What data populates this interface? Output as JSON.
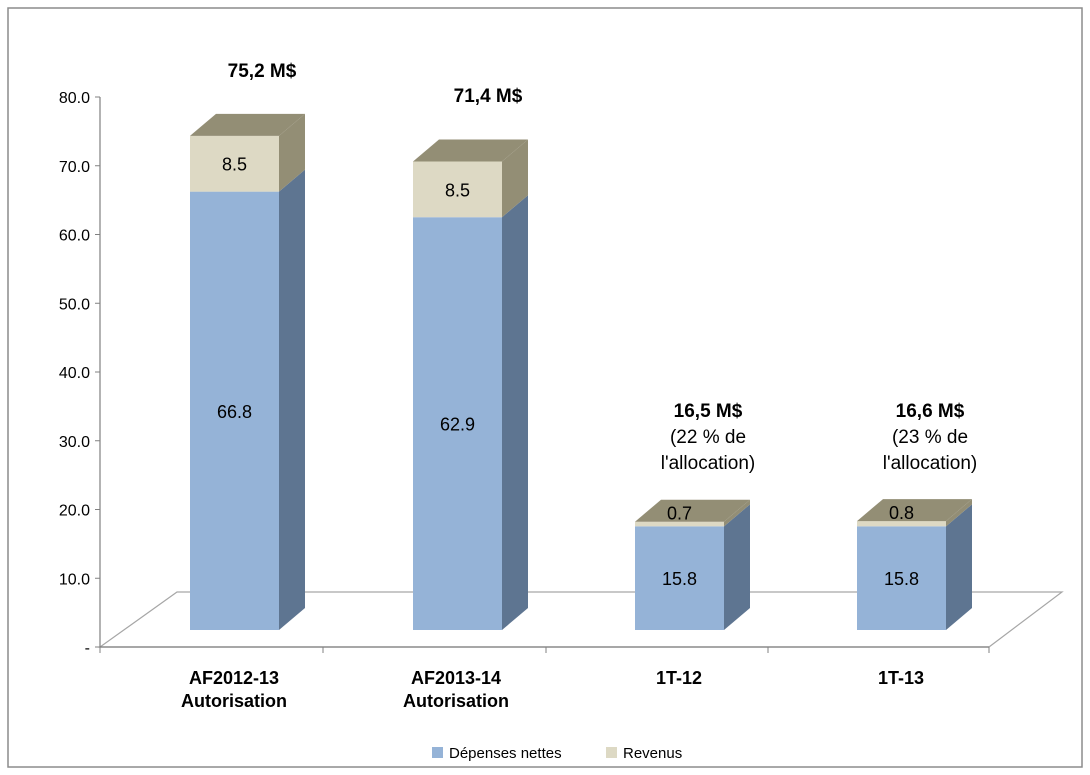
{
  "chart_data": {
    "type": "bar",
    "stacked": true,
    "three_d": true,
    "categories": [
      [
        "AF2012-13",
        "Autorisation"
      ],
      [
        "AF2013-14",
        "Autorisation"
      ],
      [
        "1T-12"
      ],
      [
        "1T-13"
      ]
    ],
    "series": [
      {
        "name": "Dépenses nettes",
        "values": [
          66.8,
          62.9,
          15.8,
          15.8
        ],
        "labels": [
          "66.8",
          "62.9",
          "15.8",
          "15.8"
        ],
        "color": "#95b3d7",
        "side_color": "#5e7591"
      },
      {
        "name": "Revenus",
        "values": [
          8.5,
          8.5,
          0.7,
          0.8
        ],
        "labels": [
          "8.5",
          "8.5",
          "0.7",
          "0.8"
        ],
        "color": "#ddd9c4",
        "side_color": "#938e75"
      }
    ],
    "totals": [
      [
        "75,2 M$"
      ],
      [
        "71,4 M$"
      ],
      [
        "16,5 M$",
        "(22 % de",
        "l'allocation)"
      ],
      [
        "16,6 M$",
        "(23 % de",
        "l'allocation)"
      ]
    ],
    "y_ticks": [
      "-",
      "10.0",
      "20.0",
      "30.0",
      "40.0",
      "50.0",
      "60.0",
      "70.0",
      "80.0"
    ],
    "ylim": [
      0,
      80
    ],
    "grid": false,
    "legend_position": "bottom",
    "title": "",
    "xlabel": "",
    "ylabel": ""
  }
}
